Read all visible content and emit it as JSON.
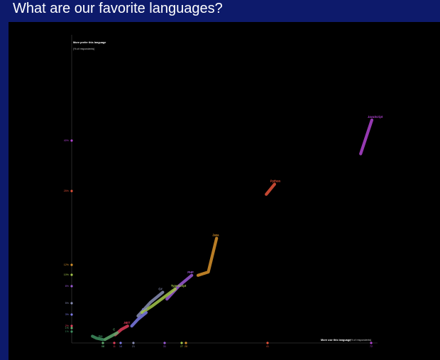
{
  "page": {
    "title": "What are our favorite languages?"
  },
  "chart_data": {
    "type": "line",
    "ylabel_title": "More prefer this language",
    "ylabel_sub": "(% of respondents)",
    "xlabel_title": "More use this language",
    "xlabel_sub": "(% of respondents)",
    "grid": false,
    "series": [
      {
        "name": "JavaScript",
        "color": "#b043d1",
        "points": [
          [
            69.8,
            28.0
          ],
          [
            72.5,
            33.0
          ]
        ]
      },
      {
        "name": "Python",
        "color": "#e5533a",
        "points": [
          [
            47.0,
            22.0
          ],
          [
            49.0,
            23.5
          ]
        ]
      },
      {
        "name": "Java",
        "color": "#d9932c",
        "points": [
          [
            30.5,
            10.0
          ],
          [
            33.0,
            10.5
          ],
          [
            35.0,
            15.5
          ]
        ]
      },
      {
        "name": "PHP",
        "color": "#9b59d6",
        "points": [
          [
            23.0,
            6.5
          ],
          [
            26.0,
            8.5
          ],
          [
            29.0,
            10.0
          ]
        ]
      },
      {
        "name": "C#",
        "color": "#8a8fb5",
        "points": [
          [
            16.0,
            4.0
          ],
          [
            19.0,
            6.0
          ],
          [
            22.0,
            7.5
          ]
        ]
      },
      {
        "name": "TypeScript",
        "color": "#a5c84a",
        "points": [
          [
            17.0,
            4.5
          ],
          [
            19.5,
            5.5
          ],
          [
            25.0,
            8.0
          ]
        ]
      },
      {
        "name": "C++",
        "color": "#7d7be8",
        "points": [
          [
            14.5,
            2.5
          ],
          [
            16.0,
            3.5
          ],
          [
            18.0,
            4.5
          ]
        ]
      },
      {
        "name": ".NET",
        "color": "#e23d5a",
        "points": [
          [
            10.5,
            1.2
          ],
          [
            12.0,
            2.0
          ],
          [
            13.5,
            2.5
          ]
        ]
      },
      {
        "name": "C",
        "color": "#5fa86c",
        "points": [
          [
            8.0,
            0.5
          ],
          [
            9.5,
            1.0
          ],
          [
            11.0,
            1.5
          ]
        ]
      },
      {
        "name": "Go",
        "color": "#3e8e5f",
        "points": [
          [
            5.0,
            1.0
          ],
          [
            6.0,
            0.7
          ],
          [
            7.5,
            0.5
          ]
        ]
      }
    ],
    "y_ticks": [
      {
        "label": "40%",
        "color": "#b043d1"
      },
      {
        "label": "25%",
        "color": "#e5533a"
      },
      {
        "label": "12%",
        "color": "#d9932c"
      },
      {
        "label": "10%",
        "color": "#a5c84a"
      },
      {
        "label": "8%",
        "color": "#9b59d6"
      },
      {
        "label": "5%",
        "color": "#8a8fb5"
      },
      {
        "label": "3%",
        "color": "#7d7be8"
      },
      {
        "label": "2%",
        "color": "#e23d5a"
      },
      {
        "label": "1%",
        "color": "#5fa86c"
      },
      {
        "label": "1%",
        "color": "#3e8e5f"
      }
    ],
    "x_ticks": [
      {
        "label": "08",
        "color": "#3e8e5f"
      },
      {
        "label": "08",
        "color": "#5fa86c"
      },
      {
        "label": "11",
        "color": "#e23d5a"
      },
      {
        "label": "14",
        "color": "#7d7be8"
      },
      {
        "label": "21",
        "color": "#8a8fb5"
      },
      {
        "label": "31",
        "color": "#9b59d6"
      },
      {
        "label": "27",
        "color": "#a5c84a"
      },
      {
        "label": "28",
        "color": "#d9932c"
      },
      {
        "label": "41",
        "color": "#e5533a"
      },
      {
        "label": "72",
        "color": "#b043d1"
      }
    ]
  }
}
